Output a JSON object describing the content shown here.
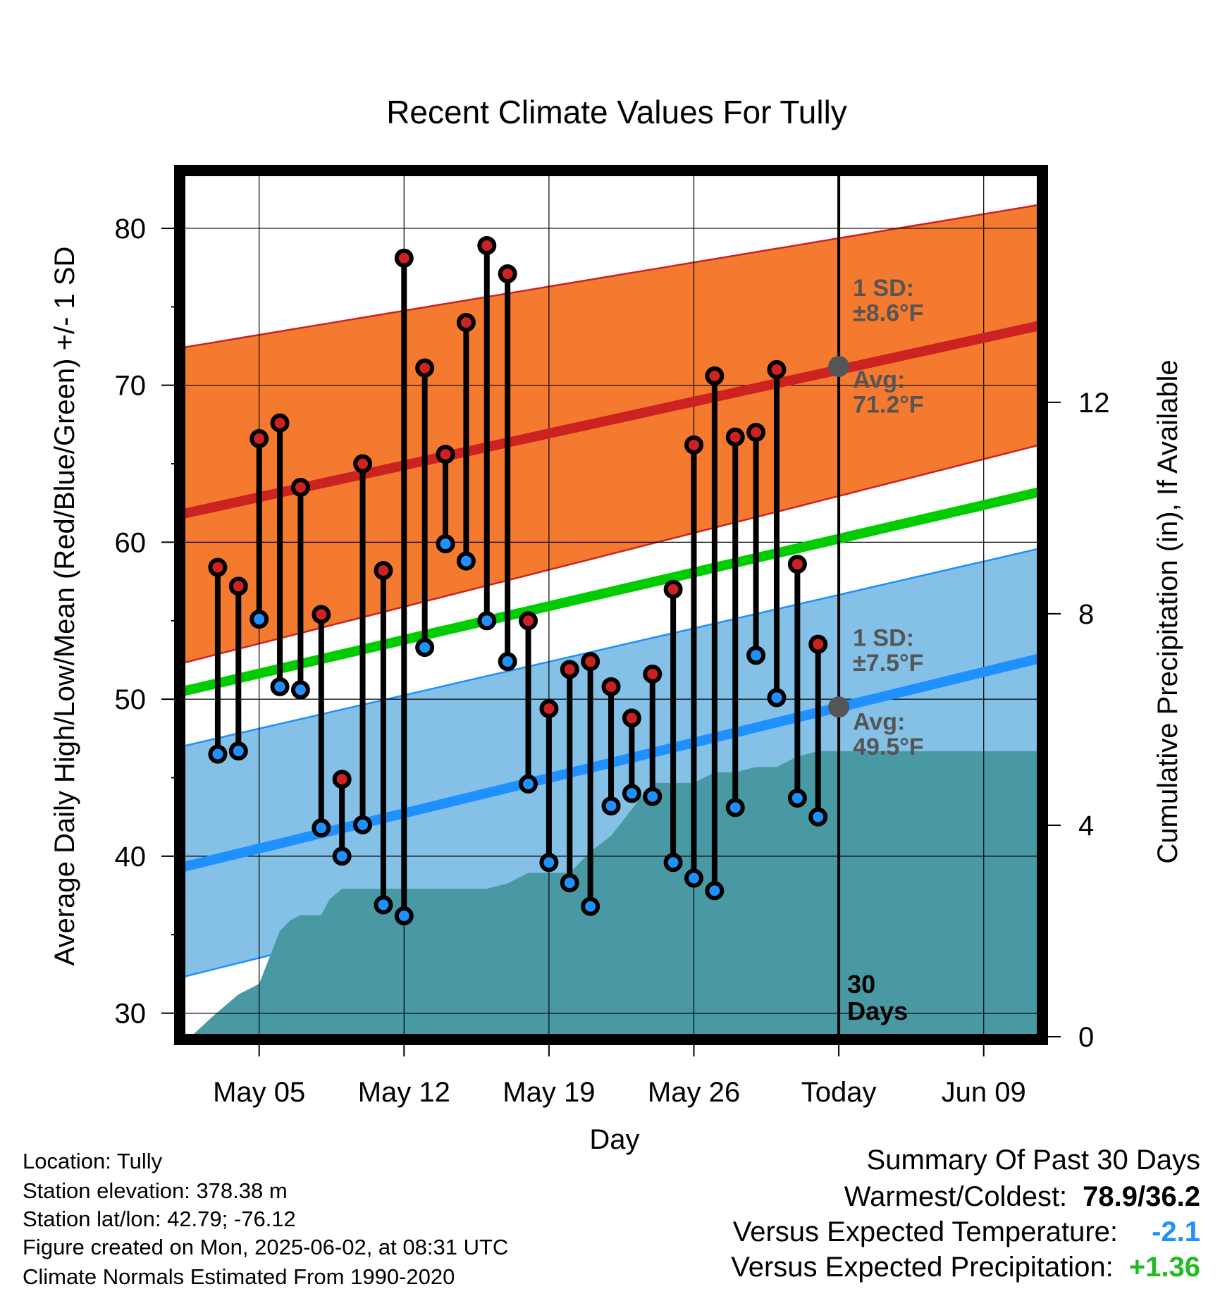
{
  "chart_data": {
    "type": "scatter",
    "title": "Recent Climate Values For Tully",
    "xlabel": "Day",
    "ylabel": "Average Daily High/Low/Mean (Red/Blue/Green) +/- 1 SD",
    "y2label": "Cumulative Precipitation (in), If Available",
    "ylim": [
      28.5,
      83.5
    ],
    "y_ticks": [
      30,
      40,
      50,
      60,
      70,
      80
    ],
    "y2lim": [
      0,
      16.33
    ],
    "y2_ticks": [
      0,
      4,
      8,
      12
    ],
    "x_start": "2025-05-01",
    "xlim_days": [
      0.3,
      41.7
    ],
    "x_ticks": [
      {
        "day": 4,
        "label": "May 05"
      },
      {
        "day": 11,
        "label": "May 12"
      },
      {
        "day": 18,
        "label": "May 19"
      },
      {
        "day": 25,
        "label": "May 26"
      },
      {
        "day": 32,
        "label": "Today"
      },
      {
        "day": 39,
        "label": "Jun 09"
      }
    ],
    "grid": true,
    "today_day": 32,
    "days_label": "30\nDays",
    "normals": {
      "high_avg": {
        "start": 61.8,
        "end": 73.8,
        "color": "#cc2222"
      },
      "high_upper": {
        "start": 72.4,
        "end": 81.5
      },
      "high_lower": {
        "start": 52.3,
        "end": 66.2
      },
      "high_band_color": "#f47a30",
      "low_avg": {
        "start": 39.3,
        "end": 52.6,
        "color": "#1e90ff"
      },
      "low_upper": {
        "start": 47.0,
        "end": 59.6
      },
      "low_lower": {
        "start": 32.3,
        "end": 45.9
      },
      "low_band_color": "#85c1e6",
      "mean_avg": {
        "start": 50.5,
        "end": 63.2,
        "color": "#00cc00"
      }
    },
    "annotations": {
      "high_sd": "1 SD:\n±8.6°F",
      "high_avg": "Avg:\n71.2°F",
      "low_sd": "1 SD:\n±7.5°F",
      "low_avg": "Avg:\n49.5°F",
      "high_avg_value": 71.2,
      "low_avg_value": 49.5
    },
    "series": [
      {
        "name": "High",
        "color": "#cc2222",
        "x": [
          2,
          3,
          4,
          5,
          6,
          7,
          8,
          9,
          10,
          11,
          12,
          13,
          14,
          15,
          16,
          17,
          18,
          19,
          20,
          21,
          22,
          23,
          24,
          25,
          26,
          27,
          28,
          29,
          30,
          31
        ],
        "values": [
          58.4,
          57.2,
          66.6,
          67.6,
          63.5,
          55.4,
          44.9,
          65.0,
          58.2,
          78.1,
          71.1,
          65.6,
          74.0,
          78.9,
          77.1,
          55.0,
          49.4,
          51.9,
          52.4,
          50.8,
          48.8,
          51.6,
          57.0,
          66.2,
          70.6,
          66.7,
          67.0,
          71.0,
          58.6,
          53.5
        ]
      },
      {
        "name": "Low",
        "color": "#1e90ff",
        "x": [
          2,
          3,
          4,
          5,
          6,
          7,
          8,
          9,
          10,
          11,
          12,
          13,
          14,
          15,
          16,
          17,
          18,
          19,
          20,
          21,
          22,
          23,
          24,
          25,
          26,
          27,
          28,
          29,
          30,
          31
        ],
        "values": [
          46.5,
          46.7,
          55.1,
          50.8,
          50.6,
          41.8,
          40.0,
          42.0,
          36.9,
          36.2,
          53.3,
          59.9,
          58.8,
          55.0,
          52.4,
          44.6,
          39.6,
          38.3,
          36.8,
          43.2,
          44.0,
          43.8,
          39.6,
          38.6,
          37.8,
          43.1,
          52.8,
          50.1,
          43.7,
          42.5
        ]
      }
    ],
    "precip": {
      "color": "#4999a4",
      "x": [
        0.7,
        1.8,
        3,
        4,
        5,
        5.5,
        6,
        7,
        7.4,
        8,
        9,
        10,
        11,
        12,
        13,
        14,
        15,
        16,
        17,
        18,
        19,
        20,
        21,
        22,
        23,
        24,
        25,
        26,
        27,
        28,
        29,
        30,
        31,
        32,
        33,
        34,
        35,
        36,
        37,
        38,
        39,
        40,
        41.6
      ],
      "values": [
        0,
        0.4,
        0.8,
        1.0,
        2.0,
        2.2,
        2.3,
        2.3,
        2.6,
        2.8,
        2.8,
        2.8,
        2.8,
        2.8,
        2.8,
        2.8,
        2.8,
        2.9,
        3.1,
        3.1,
        3.1,
        3.5,
        3.8,
        4.3,
        4.8,
        4.8,
        4.8,
        5.0,
        5.0,
        5.1,
        5.1,
        5.3,
        5.4,
        5.4,
        5.4,
        5.4,
        5.4,
        5.4,
        5.4,
        5.4,
        5.4,
        5.4,
        5.4
      ]
    }
  },
  "info": {
    "location": "Location: Tully",
    "elevation": "Station elevation: 378.38 m",
    "latlon": "Station lat/lon: 42.79; -76.12",
    "created": "Figure created on Mon, 2025-06-02, at 08:31 UTC",
    "normals": "Climate Normals Estimated From 1990-2020"
  },
  "summary": {
    "title": "Summary Of Past 30 Days",
    "warm_cold_label": "Warmest/Coldest:",
    "warm_cold_value": "78.9/36.2",
    "temp_label": "Versus Expected Temperature:",
    "temp_value": "-2.1",
    "temp_color": "#1e90ff",
    "precip_label": "Versus Expected Precipitation:",
    "precip_value": "+1.36",
    "precip_color": "#22bb22"
  }
}
